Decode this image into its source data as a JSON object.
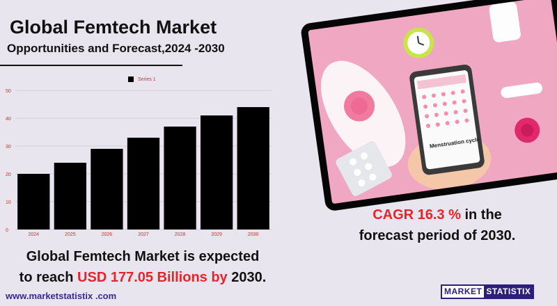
{
  "header": {
    "title": "Global Femtech Market",
    "subtitle": "Opportunities and Forecast,2024 -2030"
  },
  "chart_data": {
    "type": "bar",
    "categories": [
      "2024",
      "2025",
      "2026",
      "2027",
      "2028",
      "2029",
      "2030"
    ],
    "series": [
      {
        "name": "Series 1",
        "values": [
          20,
          24,
          29,
          33,
          37,
          41,
          44
        ]
      }
    ],
    "y_ticks": [
      "0",
      "10",
      "20",
      "30",
      "40",
      "50"
    ],
    "ylim": [
      0,
      50
    ],
    "grid": true,
    "legend": "top-center",
    "colors": {
      "bar": "#000000",
      "tick_label": "#c0392b",
      "grid": "#d3d0d8"
    }
  },
  "footer_text": {
    "line1": "Global Femtech Market is expected",
    "line2_prefix": "to reach",
    "line2_highlight": "USD 177.05 Billions by",
    "line2_suffix": "2030.",
    "url": "www.marketstatistix .com"
  },
  "cagr": {
    "highlight": "CAGR 16.3 %",
    "rest_line1": "in the",
    "line2": "forecast period of 2030."
  },
  "photo": {
    "phone_label": "Menstruation cycle"
  },
  "logo": {
    "part1": "MARKET",
    "part2": "STATISTIX"
  },
  "colors": {
    "background": "#e9e5ef",
    "highlight_red": "#e8242b",
    "brand_navy": "#2b1f7a",
    "photo_pink": "#f0a7c2"
  }
}
